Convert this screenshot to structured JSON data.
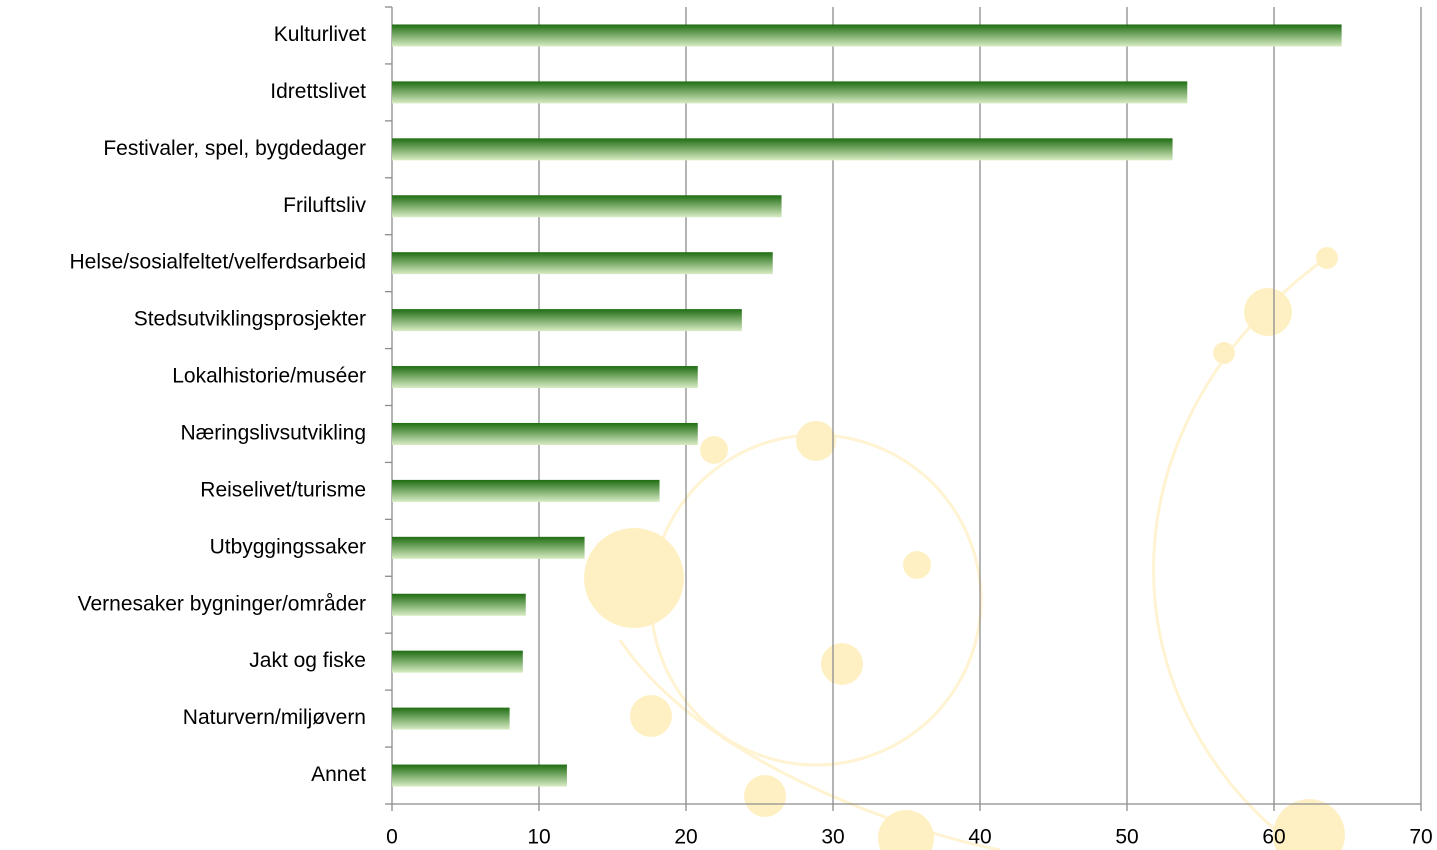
{
  "chart_data": {
    "type": "barh",
    "categories": [
      "Kulturlivet",
      "Idrettslivet",
      "Festivaler, spel, bygdedager",
      "Friluftsliv",
      "Helse/sosialfeltet/velferdsarbeid",
      "Stedsutviklingsprosjekter",
      "Lokalhistorie/muséer",
      "Næringslivsutvikling",
      "Reiselivet/turisme",
      "Utbyggingssaker",
      "Vernesaker bygninger/områder",
      "Jakt og fiske",
      "Naturvern/miljøvern",
      "Annet"
    ],
    "values": [
      64.6,
      54.1,
      53.1,
      26.5,
      25.9,
      23.8,
      20.8,
      20.8,
      18.2,
      13.1,
      9.1,
      8.9,
      8.0,
      11.9
    ],
    "color": "#1f6d12",
    "xlim": [
      0,
      70
    ],
    "xticks": [
      0,
      10,
      20,
      30,
      40,
      50,
      60,
      70
    ],
    "grid": true
  }
}
